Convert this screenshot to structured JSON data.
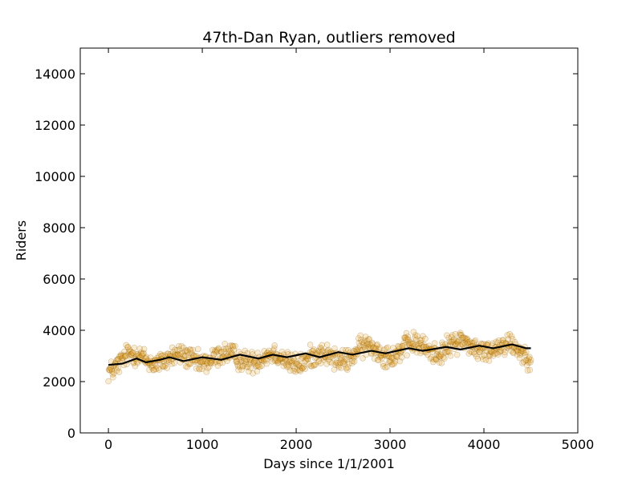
{
  "chart_data": {
    "type": "scatter",
    "title": "47th-Dan Ryan, outliers removed",
    "xlabel": "Days since 1/1/2001",
    "ylabel": "Riders",
    "xlim": [
      -300,
      5000
    ],
    "ylim": [
      0,
      15000
    ],
    "x_ticks": [
      0,
      1000,
      2000,
      3000,
      4000,
      5000
    ],
    "y_ticks": [
      0,
      2000,
      4000,
      6000,
      8000,
      10000,
      12000,
      14000
    ],
    "x_tick_labels": [
      "0",
      "1000",
      "2000",
      "3000",
      "4000",
      "5000"
    ],
    "y_tick_labels": [
      "0",
      "2000",
      "4000",
      "6000",
      "8000",
      "10000",
      "12000",
      "14000"
    ],
    "grid": false,
    "x_range_of_points": [
      0,
      4500
    ],
    "series": [
      {
        "kind": "scatter",
        "description_points": "daily riders, seasonal pattern",
        "approx_mean_points": [
          [
            0,
            2400
          ],
          [
            250,
            3100
          ],
          [
            500,
            2700
          ],
          [
            750,
            3050
          ],
          [
            1000,
            2700
          ],
          [
            1250,
            3100
          ],
          [
            1500,
            2750
          ],
          [
            1750,
            3100
          ],
          [
            2000,
            2650
          ],
          [
            2250,
            3100
          ],
          [
            2500,
            2800
          ],
          [
            2750,
            3400
          ],
          [
            3000,
            3000
          ],
          [
            3250,
            3500
          ],
          [
            3500,
            3100
          ],
          [
            3750,
            3600
          ],
          [
            4000,
            3150
          ],
          [
            4250,
            3500
          ],
          [
            4500,
            2950
          ]
        ],
        "color": "#e8a020"
      },
      {
        "kind": "line",
        "points": [
          [
            0,
            2650
          ],
          [
            150,
            2700
          ],
          [
            300,
            2900
          ],
          [
            400,
            2750
          ],
          [
            550,
            2850
          ],
          [
            650,
            2950
          ],
          [
            800,
            2800
          ],
          [
            1000,
            2950
          ],
          [
            1200,
            2850
          ],
          [
            1400,
            3050
          ],
          [
            1600,
            2900
          ],
          [
            1750,
            3050
          ],
          [
            1900,
            2950
          ],
          [
            2100,
            3100
          ],
          [
            2250,
            2950
          ],
          [
            2450,
            3150
          ],
          [
            2600,
            3050
          ],
          [
            2800,
            3200
          ],
          [
            2950,
            3100
          ],
          [
            3200,
            3300
          ],
          [
            3350,
            3200
          ],
          [
            3600,
            3350
          ],
          [
            3750,
            3250
          ],
          [
            3950,
            3400
          ],
          [
            4100,
            3300
          ],
          [
            4300,
            3450
          ],
          [
            4450,
            3300
          ],
          [
            4500,
            3300
          ]
        ],
        "color": "#000000"
      }
    ]
  }
}
